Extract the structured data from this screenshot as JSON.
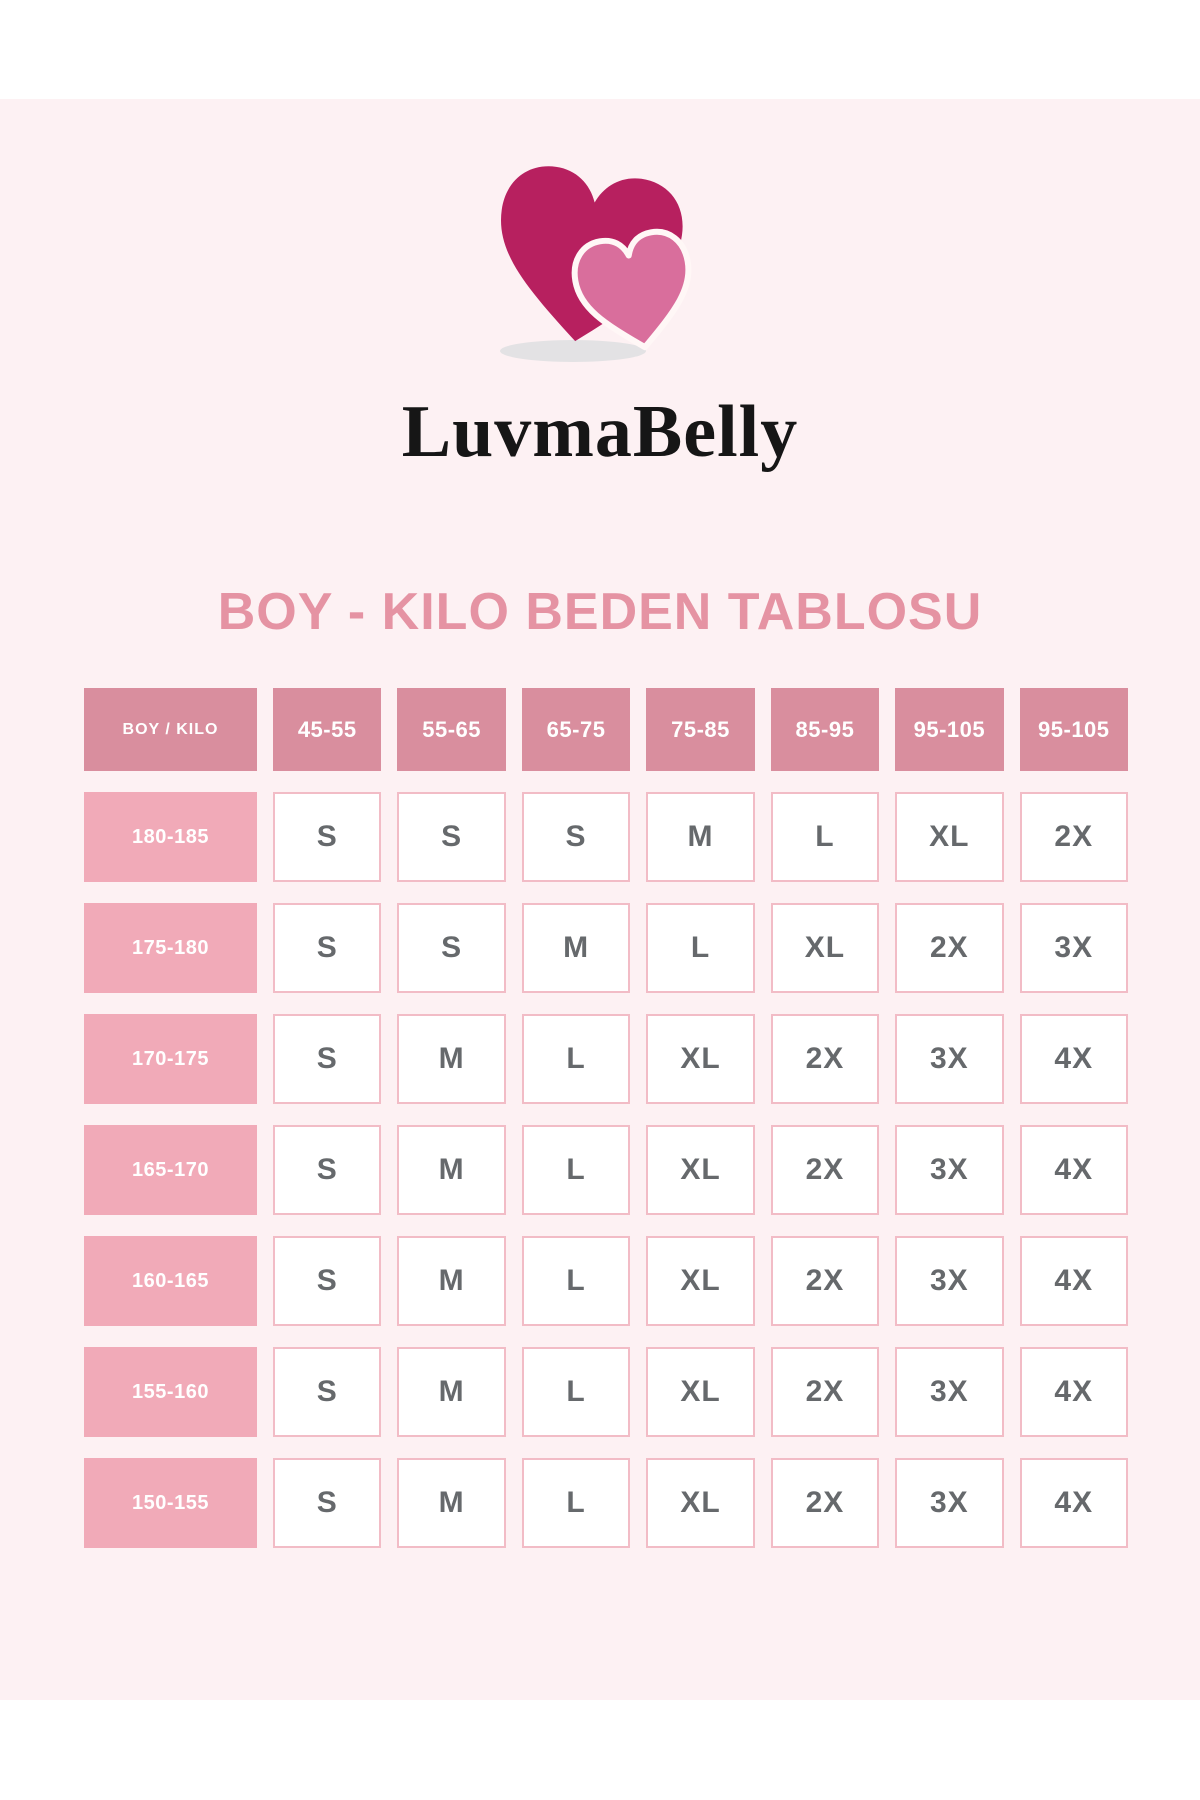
{
  "brand": {
    "name": "LuvmaBelly"
  },
  "title": "BOY - KILO BEDEN TABLOSU",
  "chart_data": {
    "type": "table",
    "title": "BOY - KILO BEDEN TABLOSU",
    "corner_header": "BOY / KILO",
    "weight_columns": [
      "45-55",
      "55-65",
      "65-75",
      "75-85",
      "85-95",
      "95-105",
      "95-105"
    ],
    "height_rows": [
      "180-185",
      "175-180",
      "170-175",
      "165-170",
      "160-165",
      "155-160",
      "150-155"
    ],
    "sizes": [
      [
        "S",
        "S",
        "S",
        "M",
        "L",
        "XL",
        "2X"
      ],
      [
        "S",
        "S",
        "M",
        "L",
        "XL",
        "2X",
        "3X"
      ],
      [
        "S",
        "M",
        "L",
        "XL",
        "2X",
        "3X",
        "4X"
      ],
      [
        "S",
        "M",
        "L",
        "XL",
        "2X",
        "3X",
        "4X"
      ],
      [
        "S",
        "M",
        "L",
        "XL",
        "2X",
        "3X",
        "4X"
      ],
      [
        "S",
        "M",
        "L",
        "XL",
        "2X",
        "3X",
        "4X"
      ],
      [
        "S",
        "M",
        "L",
        "XL",
        "2X",
        "3X",
        "4X"
      ]
    ]
  },
  "colors": {
    "page_background": "#FFFFFF",
    "panel_background": "#FDF1F3",
    "title_pink": "#E593A3",
    "column_header_pink": "#D98E9E",
    "row_header_pink": "#F1AAB8",
    "cell_border_pink": "#F2BCC6",
    "cell_text_gray": "#66696C",
    "heart_dark_pink": "#B7205F",
    "heart_light_pink": "#D96E9C",
    "heart_outline": "#FFF7F6",
    "shadow_gray": "#E3E2E4",
    "brand_text": "#161616"
  }
}
